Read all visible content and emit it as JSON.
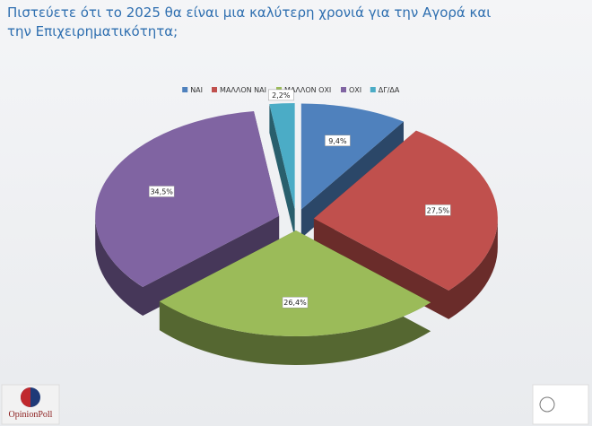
{
  "chart_data": {
    "type": "pie",
    "title": "Πιστεύετε ότι το 2025 θα είναι μια καλύτερη χρονιά για την Αγορά και την Επιχειρηματικότητα;",
    "categories": [
      "ΝΑΙ",
      "ΜΑΛΛΟΝ ΝΑΙ",
      "ΜΑΛΛΟΝ ΟΧΙ",
      "ΟΧΙ",
      "ΔΓ/ΔΑ"
    ],
    "values": [
      9.4,
      27.5,
      26.4,
      34.5,
      2.2
    ],
    "value_labels": [
      "9,4%",
      "27,5%",
      "26,4%",
      "34,5%",
      "2,2%"
    ],
    "colors": [
      "#4f81bd",
      "#c0504d",
      "#9bbb59",
      "#8064a2",
      "#4bacc6"
    ],
    "legend": "top"
  },
  "logo": {
    "text": "OpinionPoll"
  }
}
